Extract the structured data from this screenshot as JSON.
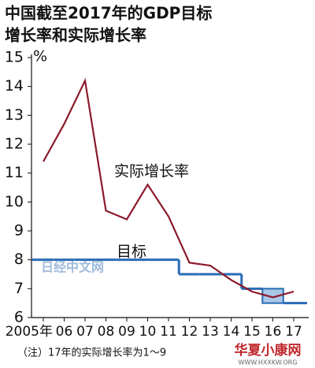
{
  "chart_data": {
    "type": "line",
    "title": [
      "中国截至2017年的GDP目标",
      "增长率和实际增长率"
    ],
    "y_unit": "%",
    "categories": [
      "2005年",
      "06",
      "07",
      "08",
      "09",
      "10",
      "11",
      "12",
      "13",
      "14",
      "15",
      "16",
      "17"
    ],
    "series": [
      {
        "name": "实际增长率",
        "color": "#8b1a2b",
        "values": [
          11.4,
          12.7,
          14.2,
          9.7,
          9.4,
          10.6,
          9.5,
          7.9,
          7.8,
          7.3,
          6.9,
          6.7,
          6.9
        ]
      },
      {
        "name": "目标",
        "color": "#2a6bb5",
        "step": true,
        "range_color": "#a9c8e8",
        "values": [
          8,
          8,
          8,
          8,
          8,
          8,
          8,
          7.5,
          7.5,
          7.5,
          7,
          6.5,
          6.5
        ],
        "upper": [
          null,
          null,
          null,
          null,
          null,
          null,
          null,
          null,
          null,
          null,
          null,
          7,
          null
        ]
      }
    ],
    "ylim": [
      6,
      15
    ],
    "yticks": [
      6,
      7,
      8,
      9,
      10,
      11,
      12,
      13,
      14,
      15
    ],
    "grid": false,
    "footnote": "（注）17年的实际增长率为1～9",
    "watermarks": [
      "日经中文网",
      "华夏小康网",
      "WWW.HXXKW.ORG"
    ]
  }
}
